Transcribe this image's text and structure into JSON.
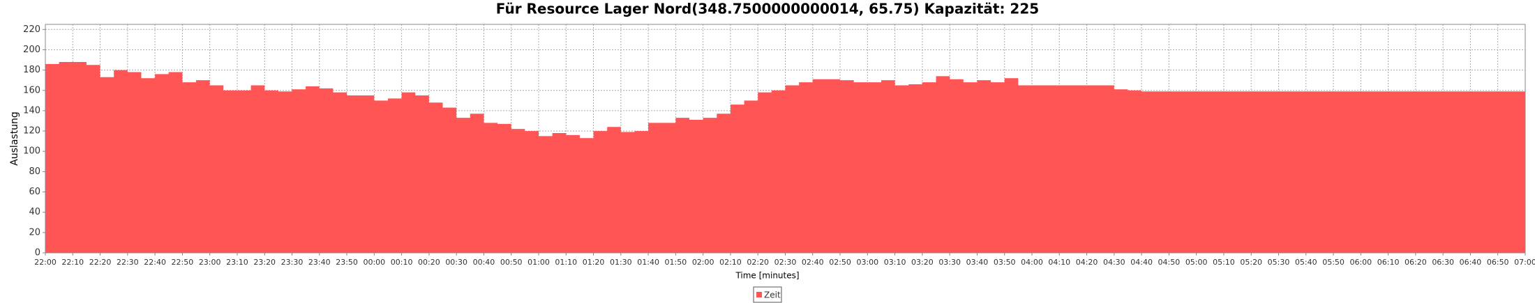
{
  "chart_data": {
    "type": "step-area",
    "title": "Für Resource Lager Nord(348.7500000000014, 65.75) Kapazität: 225",
    "x_label": "Time [minutes]",
    "y_label": "Auslastung",
    "x": [
      "22:00",
      "22:05",
      "22:10",
      "22:15",
      "22:20",
      "22:25",
      "22:30",
      "22:35",
      "22:40",
      "22:45",
      "22:50",
      "22:55",
      "23:00",
      "23:05",
      "23:10",
      "23:15",
      "23:20",
      "23:25",
      "23:30",
      "23:35",
      "23:40",
      "23:45",
      "23:50",
      "23:55",
      "00:00",
      "00:05",
      "00:10",
      "00:15",
      "00:20",
      "00:25",
      "00:30",
      "00:35",
      "00:40",
      "00:45",
      "00:50",
      "00:55",
      "01:00",
      "01:05",
      "01:10",
      "01:15",
      "01:20",
      "01:25",
      "01:30",
      "01:35",
      "01:40",
      "01:45",
      "01:50",
      "01:55",
      "02:00",
      "02:05",
      "02:10",
      "02:15",
      "02:20",
      "02:25",
      "02:30",
      "02:35",
      "02:40",
      "02:45",
      "02:50",
      "02:55",
      "03:00",
      "03:05",
      "03:10",
      "03:15",
      "03:20",
      "03:25",
      "03:30",
      "03:35",
      "03:40",
      "03:45",
      "03:50",
      "03:55",
      "04:00",
      "04:05",
      "04:10",
      "04:15",
      "04:20",
      "04:25",
      "04:30",
      "04:35",
      "04:40",
      "04:45",
      "04:50",
      "04:55",
      "05:00",
      "05:05",
      "05:10",
      "05:15",
      "05:20",
      "05:25",
      "05:30",
      "05:35",
      "05:40",
      "05:45",
      "05:50",
      "05:55",
      "06:00",
      "06:05",
      "06:10",
      "06:15",
      "06:20",
      "06:25",
      "06:30",
      "06:35",
      "06:40",
      "06:45",
      "06:50",
      "06:55"
    ],
    "series": [
      {
        "name": "Zeit",
        "color": "#ff5555",
        "values": [
          186,
          188,
          188,
          185,
          173,
          180,
          178,
          172,
          176,
          178,
          168,
          170,
          165,
          160,
          160,
          165,
          160,
          159,
          161,
          164,
          162,
          158,
          155,
          155,
          150,
          152,
          158,
          155,
          148,
          143,
          133,
          137,
          128,
          127,
          122,
          120,
          115,
          118,
          116,
          113,
          120,
          124,
          119,
          120,
          128,
          128,
          133,
          131,
          133,
          137,
          146,
          150,
          158,
          160,
          165,
          168,
          171,
          171,
          170,
          168,
          168,
          170,
          165,
          166,
          168,
          174,
          171,
          168,
          170,
          168,
          172,
          165,
          165,
          165,
          165,
          165,
          165,
          165,
          161,
          160,
          159,
          159,
          159,
          159,
          159,
          159,
          159,
          159,
          159,
          159,
          159,
          159,
          159,
          159,
          159,
          159,
          159,
          159,
          159,
          159,
          159,
          159,
          159,
          159,
          159,
          159,
          159,
          159
        ]
      }
    ],
    "xlim": [
      "22:00",
      "07:00"
    ],
    "xticks": [
      "22:00",
      "22:10",
      "22:20",
      "22:30",
      "22:40",
      "22:50",
      "23:00",
      "23:10",
      "23:20",
      "23:30",
      "23:40",
      "23:50",
      "00:00",
      "00:10",
      "00:20",
      "00:30",
      "00:40",
      "00:50",
      "01:00",
      "01:10",
      "01:20",
      "01:30",
      "01:40",
      "01:50",
      "02:00",
      "02:10",
      "02:20",
      "02:30",
      "02:40",
      "02:50",
      "03:00",
      "03:10",
      "03:20",
      "03:30",
      "03:40",
      "03:50",
      "04:00",
      "04:10",
      "04:20",
      "04:30",
      "04:40",
      "04:50",
      "05:00",
      "05:10",
      "05:20",
      "05:30",
      "05:40",
      "05:50",
      "06:00",
      "06:10",
      "06:20",
      "06:30",
      "06:40",
      "06:50",
      "07:00"
    ],
    "ylim": [
      0,
      225
    ],
    "yticks": [
      0,
      20,
      40,
      60,
      80,
      100,
      120,
      140,
      160,
      180,
      200,
      220
    ],
    "grid": true
  }
}
